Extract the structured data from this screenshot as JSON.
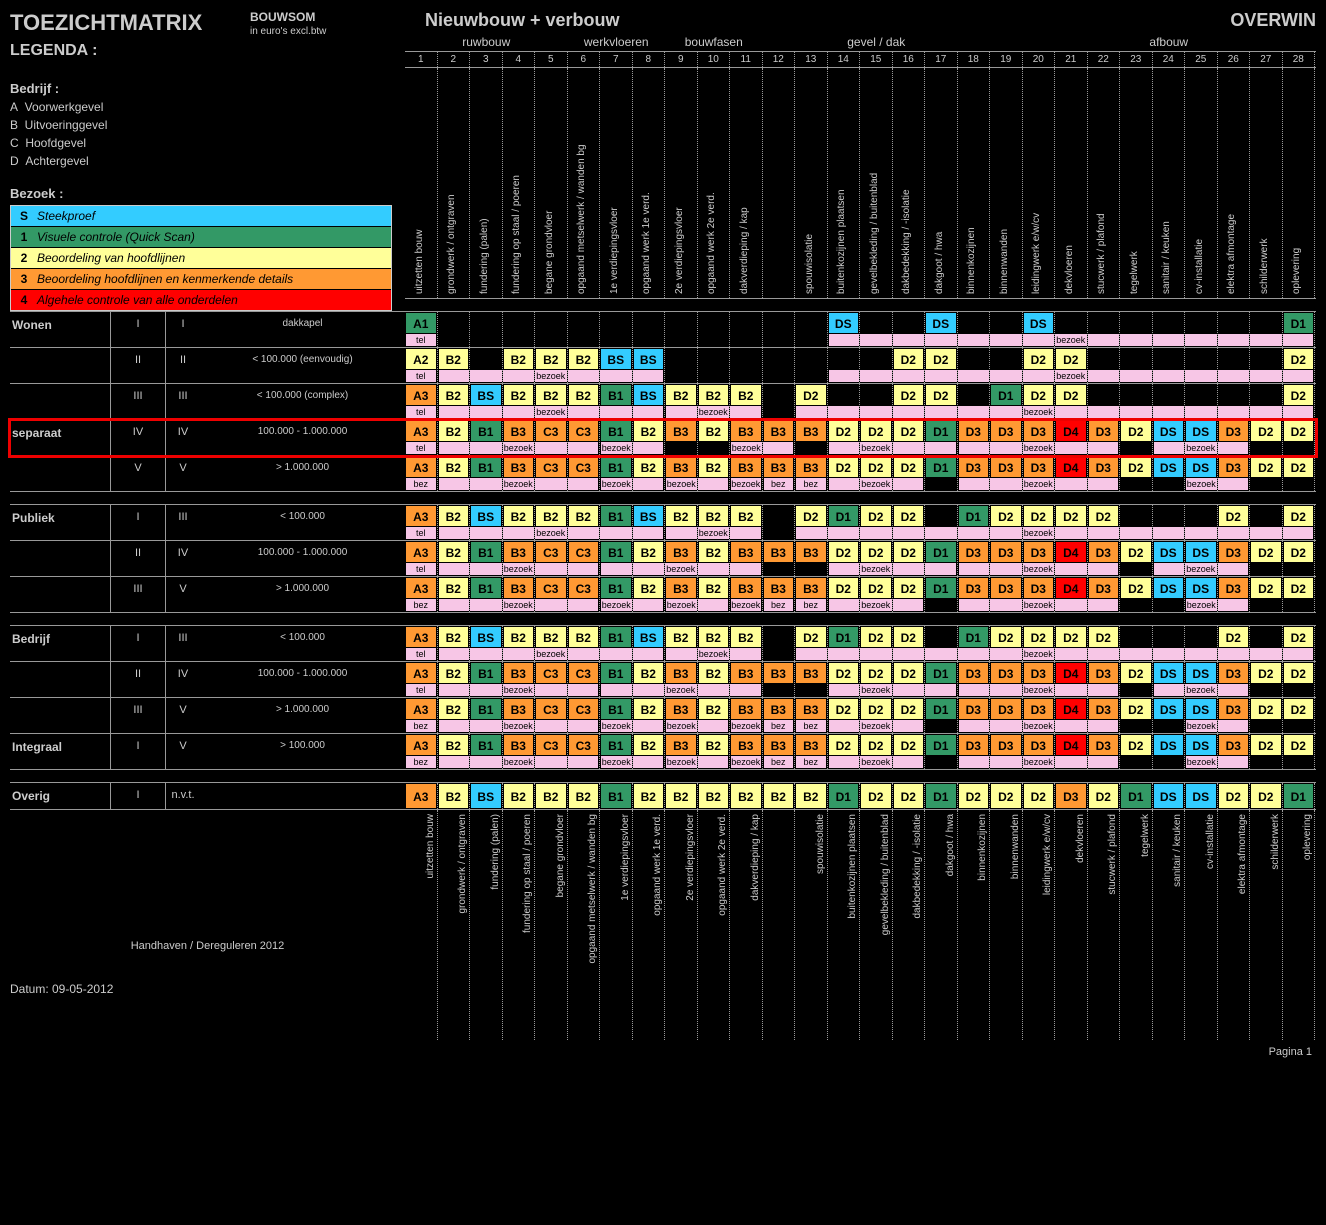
{
  "colors": {
    "S": "#33ccff",
    "1": "#339966",
    "2": "#ffff99",
    "3": "#ff9933",
    "4": "#ff0000",
    "blank": "transparent"
  },
  "title": "TOEZICHTMATRIX",
  "title_mid": "Nieuwbouw + verbouw",
  "title_right": "OVERWIN",
  "bouwsom_label": "BOUWSOM",
  "bouwsom_sub": "in euro's excl.btw",
  "legenda": "LEGENDA :",
  "bedrijf_title": "Bedrijf :",
  "bedrijf_rows": [
    [
      "A",
      "Voorwerkgevel"
    ],
    [
      "B",
      "Uitvoeringgevel"
    ],
    [
      "C",
      "Hoofdgevel"
    ],
    [
      "D",
      "Achtergevel"
    ]
  ],
  "bezoek_title": "Bezoek :",
  "legend": [
    {
      "k": "S",
      "t": "Steekproef",
      "c": "S"
    },
    {
      "k": "1",
      "t": "Visuele controle (Quick Scan)",
      "c": "1"
    },
    {
      "k": "2",
      "t": "Beoordeling van hoofdlijnen",
      "c": "2"
    },
    {
      "k": "3",
      "t": "Beoordeling hoofdlijnen en kenmerkende details",
      "c": "3"
    },
    {
      "k": "4",
      "t": "Algehele controle van alle onderdelen",
      "c": "4"
    }
  ],
  "phase_groups": [
    {
      "label": "ruwbouw",
      "span": 5
    },
    {
      "label": "werkvloeren",
      "span": 3
    },
    {
      "label": "bouwfasen",
      "span": 3
    },
    {
      "label": "",
      "span": 1
    },
    {
      "label": "gevel / dak",
      "span": 5
    },
    {
      "label": "",
      "span": 2
    },
    {
      "label": "afbouw",
      "span": 9
    }
  ],
  "col_count": 28,
  "top_vertical_labels": [
    "uitzetten bouw",
    "grondwerk / ontgraven",
    "fundering (palen)",
    "fundering op staal / poeren",
    "begane grondvloer",
    "opgaand metselwerk / wanden bg",
    "1e verdiepingsvloer",
    "opgaand werk 1e verd.",
    "2e verdiepingsvloer",
    "opgaand werk 2e verd.",
    "dakverdieping / kap",
    "",
    "spouwisolatie",
    "buitenkozijnen plaatsen",
    "gevelbekleding / buitenblad",
    "dakbedekking / -isolatie",
    "dakgoot / hwa",
    "binnenkozijnen",
    "binnenwanden",
    "leidingwerk e/w/cv",
    "dekvloeren",
    "stucwerk / plafond",
    "tegelwerk",
    "sanitair / keuken",
    "cv-installatie",
    "elektra afmontage",
    "schilderwerk",
    "oplevering"
  ],
  "bottom_vertical_labels": [
    "uitzetten bouw",
    "grondwerk / ontgraven",
    "fundering (palen)",
    "fundering op staal / poeren",
    "begane grondvloer",
    "opgaand metselwerk / wanden bg",
    "1e verdiepingsvloer",
    "opgaand werk 1e verd.",
    "2e verdiepingsvloer",
    "opgaand werk 2e verd.",
    "dakverdieping / kap",
    "",
    "spouwisolatie",
    "buitenkozijnen plaatsen",
    "gevelbekleding / buitenblad",
    "dakbedekking / -isolatie",
    "dakgoot / hwa",
    "binnenkozijnen",
    "binnenwanden",
    "leidingwerk e/w/cv",
    "dekvloeren",
    "stucwerk / plafond",
    "tegelwerk",
    "sanitair / keuken",
    "cv-installatie",
    "elektra afmontage",
    "schilderwerk",
    "oplevering"
  ],
  "footer_left": "Handhaven / Dereguleren 2012",
  "footer_right": "Pagina 1",
  "datum": "Datum: 09-05-2012",
  "sections": [
    {
      "cat": "Wonen",
      "rows": [
        {
          "code": "I",
          "klasse": "I",
          "bouw": "dakkapel",
          "cells": [
            "A1",
            "",
            "",
            "",
            "",
            "",
            "",
            "",
            "",
            "",
            "",
            "",
            "",
            "DS",
            "",
            "",
            "DS",
            "",
            "",
            "DS",
            "",
            "",
            "",
            "",
            "",
            "",
            "",
            "D1"
          ],
          "subs": [
            [
              "tel",
              1
            ],
            [
              "",
              12
            ],
            [
              "bezoek",
              15
            ]
          ]
        },
        {
          "code": "II",
          "klasse": "II",
          "bouw": "< 100.000 (eenvoudig)",
          "cells": [
            "A2",
            "B2",
            "",
            "B2",
            "B2",
            "B2",
            "BS",
            "BS",
            "",
            "",
            "",
            "",
            "",
            "",
            "",
            "D2",
            "D2",
            "",
            "",
            "D2",
            "D2",
            "",
            "",
            "",
            "",
            "",
            "",
            "D2"
          ],
          "subs": [
            [
              "tel",
              1
            ],
            [
              "bezoek",
              7
            ],
            [
              "",
              5
            ],
            [
              "bezoek",
              15
            ]
          ]
        },
        {
          "code": "III",
          "klasse": "III",
          "bouw": "< 100.000 (complex)",
          "cells": [
            "A3",
            "B2",
            "BS",
            "B2",
            "B2",
            "B2",
            "B1",
            "BS",
            "B2",
            "B2",
            "B2",
            "",
            "D2",
            "",
            "",
            "D2",
            "D2",
            "",
            "D1",
            "D2",
            "D2",
            "",
            "",
            "",
            "",
            "",
            "",
            "D2"
          ],
          "subs": [
            [
              "tel",
              1
            ],
            [
              "bezoek",
              7
            ],
            [
              "bezoek",
              3
            ],
            [
              "",
              1
            ],
            [
              "bezoek",
              16
            ]
          ]
        },
        {
          "hl": true,
          "code": "IV",
          "klasse": "IV",
          "bouw": "100.000 - 1.000.000",
          "cat_override": "separaat",
          "cells": [
            "A3",
            "B2",
            "B1",
            "B3",
            "C3",
            "C3",
            "B1",
            "B2",
            "B3",
            "B2",
            "B3",
            "B3",
            "B3",
            "D2",
            "D2",
            "D2",
            "D1",
            "D3",
            "D3",
            "D3",
            "D4",
            "D3",
            "D2",
            "DS",
            "DS",
            "D3",
            "D2",
            "D2"
          ],
          "subs": [
            [
              "tel",
              1
            ],
            [
              "bezoek",
              5
            ],
            [
              "bezoek",
              2
            ],
            [
              "",
              2
            ],
            [
              "bezoek",
              2
            ],
            [
              "",
              1
            ],
            [
              "bezoek",
              4
            ],
            [
              "bezoek",
              5
            ],
            [
              "",
              1
            ],
            [
              "bezoek",
              3
            ],
            [
              "",
              2
            ]
          ]
        },
        {
          "code": "V",
          "klasse": "V",
          "bouw": "> 1.000.000",
          "cells": [
            "A3",
            "B2",
            "B1",
            "B3",
            "C3",
            "C3",
            "B1",
            "B2",
            "B3",
            "B2",
            "B3",
            "B3",
            "B3",
            "D2",
            "D2",
            "D2",
            "D1",
            "D3",
            "D3",
            "D3",
            "D4",
            "D3",
            "D2",
            "DS",
            "DS",
            "D3",
            "D2",
            "D2"
          ],
          "subs": [
            [
              "bez",
              1
            ],
            [
              "bezoek",
              5
            ],
            [
              "bezoek",
              2
            ],
            [
              "bezoek",
              2
            ],
            [
              "bezoek",
              1
            ],
            [
              "bez",
              1
            ],
            [
              "bez",
              1
            ],
            [
              "bezoek",
              3
            ],
            [
              "",
              1
            ],
            [
              "bezoek",
              5
            ],
            [
              "",
              2
            ],
            [
              "bezoek",
              2
            ],
            [
              "",
              2
            ]
          ]
        }
      ]
    },
    {
      "cat": "Publiek",
      "rows": [
        {
          "code": "I",
          "klasse": "III",
          "bouw": "< 100.000",
          "cells": [
            "A3",
            "B2",
            "BS",
            "B2",
            "B2",
            "B2",
            "B1",
            "BS",
            "B2",
            "B2",
            "B2",
            "",
            "D2",
            "D1",
            "D2",
            "D2",
            "",
            "D1",
            "D2",
            "D2",
            "D2",
            "D2",
            "",
            "",
            "",
            "D2",
            "",
            "D2"
          ],
          "subs": [
            [
              "tel",
              1
            ],
            [
              "bezoek",
              7
            ],
            [
              "bezoek",
              3
            ],
            [
              "",
              1
            ],
            [
              "bezoek",
              16
            ]
          ]
        },
        {
          "code": "II",
          "klasse": "IV",
          "bouw": "100.000 - 1.000.000",
          "cells": [
            "A3",
            "B2",
            "B1",
            "B3",
            "C3",
            "C3",
            "B1",
            "B2",
            "B3",
            "B2",
            "B3",
            "B3",
            "B3",
            "D2",
            "D2",
            "D2",
            "D1",
            "D3",
            "D3",
            "D3",
            "D4",
            "D3",
            "D2",
            "DS",
            "DS",
            "D3",
            "D2",
            "D2"
          ],
          "subs": [
            [
              "tel",
              1
            ],
            [
              "bezoek",
              5
            ],
            [
              "bezoek",
              5
            ],
            [
              "",
              2
            ],
            [
              "bezoek",
              4
            ],
            [
              "bezoek",
              5
            ],
            [
              "",
              1
            ],
            [
              "bezoek",
              3
            ],
            [
              "",
              2
            ]
          ]
        },
        {
          "code": "III",
          "klasse": "V",
          "bouw": "> 1.000.000",
          "cells": [
            "A3",
            "B2",
            "B1",
            "B3",
            "C3",
            "C3",
            "B1",
            "B2",
            "B3",
            "B2",
            "B3",
            "B3",
            "B3",
            "D2",
            "D2",
            "D2",
            "D1",
            "D3",
            "D3",
            "D3",
            "D4",
            "D3",
            "D2",
            "DS",
            "DS",
            "D3",
            "D2",
            "D2"
          ],
          "subs": [
            [
              "bez",
              1
            ],
            [
              "bezoek",
              5
            ],
            [
              "bezoek",
              2
            ],
            [
              "bezoek",
              2
            ],
            [
              "bezoek",
              1
            ],
            [
              "bez",
              1
            ],
            [
              "bez",
              1
            ],
            [
              "bezoek",
              3
            ],
            [
              "",
              1
            ],
            [
              "bezoek",
              5
            ],
            [
              "",
              2
            ],
            [
              "bezoek",
              2
            ],
            [
              "",
              2
            ]
          ]
        }
      ]
    },
    {
      "cat": "Bedrijf",
      "rows": [
        {
          "code": "I",
          "klasse": "III",
          "bouw": "< 100.000",
          "cells": [
            "A3",
            "B2",
            "BS",
            "B2",
            "B2",
            "B2",
            "B1",
            "BS",
            "B2",
            "B2",
            "B2",
            "",
            "D2",
            "D1",
            "D2",
            "D2",
            "",
            "D1",
            "D2",
            "D2",
            "D2",
            "D2",
            "",
            "",
            "",
            "D2",
            "",
            "D2"
          ],
          "subs": [
            [
              "tel",
              1
            ],
            [
              "bezoek",
              7
            ],
            [
              "bezoek",
              3
            ],
            [
              "",
              1
            ],
            [
              "bezoek",
              16
            ]
          ]
        },
        {
          "code": "II",
          "klasse": "IV",
          "bouw": "100.000 - 1.000.000",
          "cells": [
            "A3",
            "B2",
            "B1",
            "B3",
            "C3",
            "C3",
            "B1",
            "B2",
            "B3",
            "B2",
            "B3",
            "B3",
            "B3",
            "D2",
            "D2",
            "D2",
            "D1",
            "D3",
            "D3",
            "D3",
            "D4",
            "D3",
            "D2",
            "DS",
            "DS",
            "D3",
            "D2",
            "D2"
          ],
          "subs": [
            [
              "tel",
              1
            ],
            [
              "bezoek",
              5
            ],
            [
              "bezoek",
              5
            ],
            [
              "",
              2
            ],
            [
              "bezoek",
              4
            ],
            [
              "bezoek",
              5
            ],
            [
              "",
              1
            ],
            [
              "bezoek",
              3
            ],
            [
              "",
              2
            ]
          ]
        },
        {
          "code": "III",
          "klasse": "V",
          "bouw": "> 1.000.000",
          "cells": [
            "A3",
            "B2",
            "B1",
            "B3",
            "C3",
            "C3",
            "B1",
            "B2",
            "B3",
            "B2",
            "B3",
            "B3",
            "B3",
            "D2",
            "D2",
            "D2",
            "D1",
            "D3",
            "D3",
            "D3",
            "D4",
            "D3",
            "D2",
            "DS",
            "DS",
            "D3",
            "D2",
            "D2"
          ],
          "subs": [
            [
              "bez",
              1
            ],
            [
              "bezoek",
              5
            ],
            [
              "bezoek",
              2
            ],
            [
              "bezoek",
              2
            ],
            [
              "bezoek",
              1
            ],
            [
              "bez",
              1
            ],
            [
              "bez",
              1
            ],
            [
              "bezoek",
              3
            ],
            [
              "",
              1
            ],
            [
              "bezoek",
              5
            ],
            [
              "",
              2
            ],
            [
              "bezoek",
              2
            ],
            [
              "",
              2
            ]
          ]
        },
        {
          "cat_override": "Integraal",
          "code": "I",
          "klasse": "V",
          "bouw": "> 100.000",
          "cells": [
            "A3",
            "B2",
            "B1",
            "B3",
            "C3",
            "C3",
            "B1",
            "B2",
            "B3",
            "B2",
            "B3",
            "B3",
            "B3",
            "D2",
            "D2",
            "D2",
            "D1",
            "D3",
            "D3",
            "D3",
            "D4",
            "D3",
            "D2",
            "DS",
            "DS",
            "D3",
            "D2",
            "D2"
          ],
          "subs": [
            [
              "bez",
              1
            ],
            [
              "bezoek",
              5
            ],
            [
              "bezoek",
              2
            ],
            [
              "bezoek",
              2
            ],
            [
              "bezoek",
              1
            ],
            [
              "bez",
              1
            ],
            [
              "bez",
              1
            ],
            [
              "bezoek",
              3
            ],
            [
              "",
              1
            ],
            [
              "bezoek",
              5
            ],
            [
              "",
              2
            ],
            [
              "bezoek",
              2
            ],
            [
              "",
              2
            ]
          ]
        }
      ]
    },
    {
      "cat": "Overig",
      "rows": [
        {
          "code": "I",
          "klasse": "n.v.t.",
          "bouw": "",
          "nosub": true,
          "cells": [
            "A3",
            "B2",
            "BS",
            "B2",
            "B2",
            "B2",
            "B1",
            "B2",
            "B2",
            "B2",
            "B2",
            "B2",
            "B2",
            "D1",
            "D2",
            "D2",
            "D1",
            "D2",
            "D2",
            "D2",
            "D3",
            "D2",
            "D1",
            "DS",
            "DS",
            "D2",
            "D2",
            "D1"
          ],
          "subs": []
        }
      ]
    }
  ]
}
